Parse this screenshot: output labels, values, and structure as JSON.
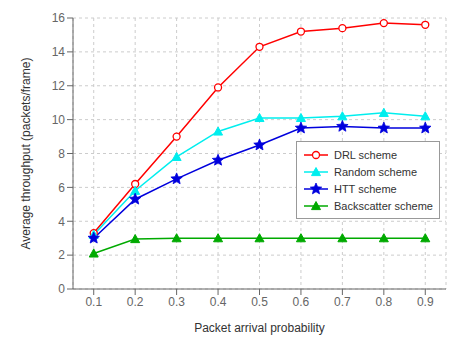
{
  "chart_data": {
    "type": "line",
    "x": [
      0.1,
      0.2,
      0.3,
      0.4,
      0.5,
      0.6,
      0.7,
      0.8,
      0.9
    ],
    "series": [
      {
        "name": "DRL scheme",
        "color": "#ff0000",
        "marker": "circle",
        "values": [
          3.3,
          6.2,
          9.0,
          11.9,
          14.3,
          15.2,
          15.4,
          15.7,
          15.6
        ]
      },
      {
        "name": "Random scheme",
        "color": "#00eeee",
        "marker": "triangle",
        "values": [
          3.2,
          5.8,
          7.8,
          9.3,
          10.1,
          10.1,
          10.2,
          10.4,
          10.2
        ]
      },
      {
        "name": "HTT scheme",
        "color": "#0000dd",
        "marker": "star",
        "values": [
          3.0,
          5.3,
          6.5,
          7.6,
          8.5,
          9.5,
          9.6,
          9.5,
          9.5
        ]
      },
      {
        "name": "Backscatter scheme",
        "color": "#00aa00",
        "marker": "triangle",
        "values": [
          2.1,
          2.95,
          3.0,
          3.0,
          3.0,
          3.0,
          3.0,
          3.0,
          3.0
        ]
      }
    ],
    "xlabel": "Packet arrival probability",
    "ylabel": "Average throughput (packets/frame)",
    "xlim": [
      0.05,
      0.95
    ],
    "xticks": [
      0.1,
      0.2,
      0.3,
      0.4,
      0.5,
      0.6,
      0.7,
      0.8,
      0.9
    ],
    "ylim": [
      0,
      16
    ],
    "yticks": [
      0,
      2,
      4,
      6,
      8,
      10,
      12,
      14,
      16
    ],
    "grid": true,
    "legend": "lower right"
  }
}
